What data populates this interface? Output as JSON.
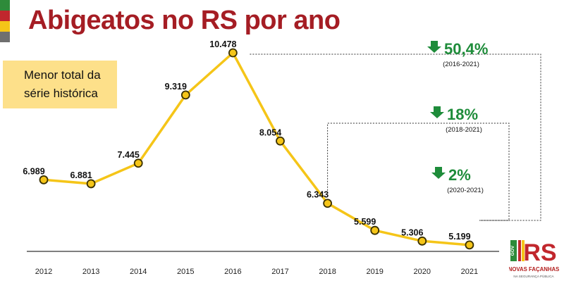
{
  "title": "Abigeatos no RS por ano",
  "note": {
    "line1": "Menor total da",
    "line2": "série histórica"
  },
  "colors": {
    "title": "#a51d24",
    "line": "#f5c518",
    "marker_fill": "#f5c518",
    "marker_stroke": "#3a3000",
    "change_green": "#1e8c3a",
    "note_bg": "#fde08a",
    "flag": [
      "#2e8b3a",
      "#c1272d",
      "#f5c518",
      "#6f6f6f"
    ]
  },
  "chart_data": {
    "type": "line",
    "categories": [
      "2012",
      "2013",
      "2014",
      "2015",
      "2016",
      "2017",
      "2018",
      "2019",
      "2020",
      "2021"
    ],
    "values": [
      6989,
      6881,
      7445,
      9319,
      10478,
      8054,
      6343,
      5599,
      5306,
      5199
    ],
    "value_labels": [
      "6.989",
      "6.881",
      "7.445",
      "9.319",
      "10.478",
      "8.054",
      "6.343",
      "5.599",
      "5.306",
      "5.199"
    ],
    "ylim": [
      4500,
      11000
    ],
    "grid": false,
    "annotations": [
      {
        "text": "50,4%",
        "period": "(2016-2021)",
        "direction": "down",
        "from": "2016",
        "to": "2021"
      },
      {
        "text": "18%",
        "period": "(2018-2021)",
        "direction": "down",
        "from": "2018",
        "to": "2021"
      },
      {
        "text": "2%",
        "period": "(2020-2021)",
        "direction": "down",
        "from": "2020",
        "to": "2021"
      }
    ]
  },
  "logo": {
    "side_text": "GOV",
    "letters": "RS",
    "tagline": "NOVAS FAÇANHAS",
    "subtagline": "NA SEGURANÇA PÚBLICA"
  }
}
